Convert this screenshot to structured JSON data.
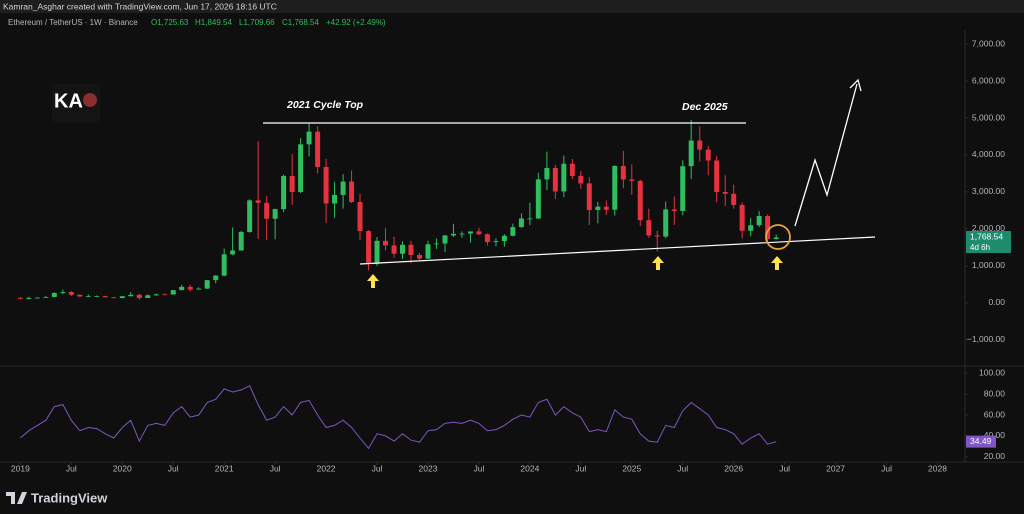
{
  "header": {
    "creator": "Kamran_Asghar created with TradingView.com, Jun 17, 2026 18:16 UTC",
    "symbol": "Ethereum / TetherUS · 1W · Binance",
    "ohlc": {
      "open": "O1,725.63",
      "high": "H1,849.54",
      "low": "L1,709.66",
      "close": "C1,768.54",
      "change": "+42.92 (+2.49%)"
    }
  },
  "logo": "KA",
  "footer": "TradingView",
  "annotations": {
    "cycle_top": "2021 Cycle Top",
    "dec_2025": "Dec 2025"
  },
  "chart_data": [
    {
      "type": "candlestick",
      "up_color": "#2ebd5f",
      "down_color": "#e5323f",
      "x": [
        2019,
        2019.083,
        2019.167,
        2019.25,
        2019.333,
        2019.417,
        2019.5,
        2019.583,
        2019.667,
        2019.75,
        2019.833,
        2019.917,
        2020,
        2020.083,
        2020.167,
        2020.25,
        2020.333,
        2020.417,
        2020.5,
        2020.583,
        2020.667,
        2020.75,
        2020.833,
        2020.917,
        2021,
        2021.083,
        2021.167,
        2021.25,
        2021.333,
        2021.417,
        2021.5,
        2021.583,
        2021.667,
        2021.75,
        2021.833,
        2021.917,
        2022,
        2022.083,
        2022.167,
        2022.25,
        2022.333,
        2022.417,
        2022.5,
        2022.583,
        2022.667,
        2022.75,
        2022.833,
        2022.917,
        2023,
        2023.083,
        2023.167,
        2023.25,
        2023.333,
        2023.417,
        2023.5,
        2023.583,
        2023.667,
        2023.75,
        2023.833,
        2023.917,
        2024,
        2024.083,
        2024.167,
        2024.25,
        2024.333,
        2024.417,
        2024.5,
        2024.583,
        2024.667,
        2024.75,
        2024.833,
        2024.917,
        2025,
        2025.083,
        2025.167,
        2025.25,
        2025.333,
        2025.417,
        2025.5,
        2025.583,
        2025.667,
        2025.75,
        2025.833,
        2025.917,
        2026,
        2026.083,
        2026.167,
        2026.25,
        2026.333,
        2026.417
      ],
      "open": [
        130,
        107,
        136,
        141,
        160,
        268,
        294,
        218,
        172,
        180,
        182,
        152,
        130,
        180,
        218,
        133,
        206,
        231,
        226,
        345,
        434,
        360,
        386,
        616,
        737,
        1313,
        1416,
        1918,
        2773,
        2706,
        2275,
        2536,
        3433,
        3000,
        4288,
        4631,
        3676,
        2688,
        2920,
        3282,
        2727,
        1942,
        1070,
        1678,
        1553,
        1328,
        1572,
        1295,
        1196,
        1585,
        1605,
        1822,
        1869,
        1874,
        1934,
        1857,
        1645,
        1671,
        1815,
        2049,
        2282,
        2283,
        3340,
        3647,
        3014,
        3763,
        3433,
        3232,
        2513,
        2602,
        2518,
        3703,
        3337,
        3300,
        2237,
        1822,
        1793,
        2528,
        2486,
        3698,
        4390,
        4145,
        3850,
        3000,
        2950,
        2650,
        1950,
        2100,
        2350,
        1726
      ],
      "high": [
        160,
        165,
        150,
        185,
        285,
        360,
        320,
        225,
        225,
        200,
        195,
        155,
        185,
        290,
        250,
        225,
        250,
        255,
        350,
        490,
        490,
        420,
        620,
        750,
        1470,
        2040,
        1950,
        2800,
        4370,
        2890,
        2550,
        3470,
        4030,
        4460,
        4870,
        4780,
        3900,
        3280,
        3480,
        3580,
        2950,
        1970,
        1780,
        2030,
        1790,
        1670,
        1680,
        1350,
        1680,
        1740,
        1840,
        2140,
        1930,
        1930,
        2030,
        1880,
        1750,
        1860,
        2140,
        2420,
        2710,
        3520,
        4090,
        3730,
        3980,
        3890,
        3560,
        3400,
        2730,
        2770,
        3720,
        4110,
        3750,
        3330,
        2550,
        1950,
        2740,
        2880,
        3860,
        4950,
        4770,
        4250,
        3980,
        3450,
        3200,
        2720,
        2300,
        2480,
        2390,
        1849.54
      ],
      "low": [
        100,
        100,
        130,
        140,
        155,
        230,
        190,
        165,
        155,
        155,
        140,
        115,
        125,
        175,
        90,
        130,
        185,
        215,
        225,
        335,
        310,
        365,
        375,
        530,
        715,
        1290,
        1420,
        1900,
        1730,
        1700,
        1720,
        2450,
        2650,
        2970,
        3960,
        3500,
        2160,
        2300,
        2550,
        2700,
        1700,
        880,
        1000,
        1420,
        1220,
        1190,
        1070,
        1160,
        1190,
        1460,
        1370,
        1780,
        1760,
        1630,
        1830,
        1550,
        1530,
        1520,
        1800,
        2030,
        2100,
        2270,
        3050,
        2810,
        2860,
        3350,
        3090,
        2110,
        2150,
        2380,
        2360,
        3100,
        2920,
        2080,
        1760,
        1390,
        1750,
        2110,
        2370,
        3350,
        3820,
        3450,
        2720,
        2620,
        2550,
        1740,
        1800,
        2050,
        1660,
        1709.66
      ],
      "close": [
        107,
        136,
        141,
        160,
        268,
        294,
        218,
        172,
        180,
        182,
        152,
        130,
        180,
        218,
        133,
        206,
        231,
        226,
        345,
        434,
        360,
        386,
        616,
        737,
        1313,
        1416,
        1918,
        2773,
        2706,
        2275,
        2536,
        3433,
        3000,
        4288,
        4631,
        3676,
        2688,
        2920,
        3282,
        2727,
        1942,
        1070,
        1678,
        1553,
        1328,
        1572,
        1295,
        1196,
        1585,
        1605,
        1822,
        1869,
        1874,
        1934,
        1857,
        1645,
        1671,
        1815,
        2049,
        2282,
        2283,
        3340,
        3647,
        3014,
        3763,
        3433,
        3232,
        2513,
        2602,
        2518,
        3703,
        3337,
        3300,
        2237,
        1822,
        1793,
        2528,
        2486,
        3698,
        4390,
        4145,
        3850,
        3000,
        2950,
        2650,
        1950,
        2100,
        2350,
        1726,
        1768.54
      ],
      "xlim": [
        2018.8,
        2028.27
      ],
      "xticks": [
        2019,
        {
          "value": 2019.5,
          "label": "Jul"
        },
        2020,
        {
          "value": 2020.5,
          "label": "Jul"
        },
        2021,
        {
          "value": 2021.5,
          "label": "Jul"
        },
        2022,
        {
          "value": 2022.5,
          "label": "Jul"
        },
        2023,
        {
          "value": 2023.5,
          "label": "Jul"
        },
        2024,
        {
          "value": 2024.5,
          "label": "Jul"
        },
        2025,
        {
          "value": 2025.5,
          "label": "Jul"
        },
        2026,
        {
          "value": 2026.5,
          "label": "Jul"
        },
        2027,
        {
          "value": 2027.5,
          "label": "Jul"
        },
        2028
      ],
      "ylim": [
        -1680,
        7380
      ],
      "yticks": [
        {
          "value": -1000,
          "label": "−1,000.00"
        },
        {
          "value": 0,
          "label": "0.00"
        },
        {
          "value": 1000,
          "label": "1,000.00"
        },
        {
          "value": 2000,
          "label": "2,000.00"
        },
        {
          "value": 3000,
          "label": "3,000.00"
        },
        {
          "value": 4000,
          "label": "4,000.00"
        },
        {
          "value": 5000,
          "label": "5,000.00"
        },
        {
          "value": 6000,
          "label": "6,000.00"
        },
        {
          "value": 7000,
          "label": "7,000.00"
        }
      ],
      "price_badge": {
        "label": "1,768.54",
        "countdown": "4d 6h"
      }
    },
    {
      "type": "line",
      "color": "#7e57c2",
      "values": [
        38,
        45,
        50,
        55,
        68,
        70,
        55,
        45,
        48,
        47,
        42,
        38,
        48,
        55,
        35,
        50,
        52,
        50,
        62,
        68,
        58,
        60,
        72,
        75,
        85,
        82,
        84,
        88,
        70,
        55,
        58,
        68,
        60,
        72,
        74,
        60,
        48,
        50,
        55,
        48,
        38,
        28,
        42,
        40,
        35,
        42,
        36,
        34,
        45,
        46,
        52,
        53,
        52,
        55,
        52,
        45,
        46,
        50,
        56,
        60,
        58,
        72,
        75,
        60,
        68,
        62,
        58,
        44,
        46,
        44,
        65,
        58,
        56,
        42,
        35,
        34,
        50,
        48,
        64,
        72,
        66,
        60,
        48,
        46,
        42,
        32,
        38,
        42,
        32,
        34.49
      ],
      "ylim": [
        15,
        105
      ],
      "yticks": [
        {
          "value": 20,
          "label": "20.00"
        },
        {
          "value": 40,
          "label": "40.00"
        },
        {
          "value": 60,
          "label": "60.00"
        },
        {
          "value": 80,
          "label": "80.00"
        },
        {
          "value": 100,
          "label": "100.00"
        }
      ]
    }
  ]
}
